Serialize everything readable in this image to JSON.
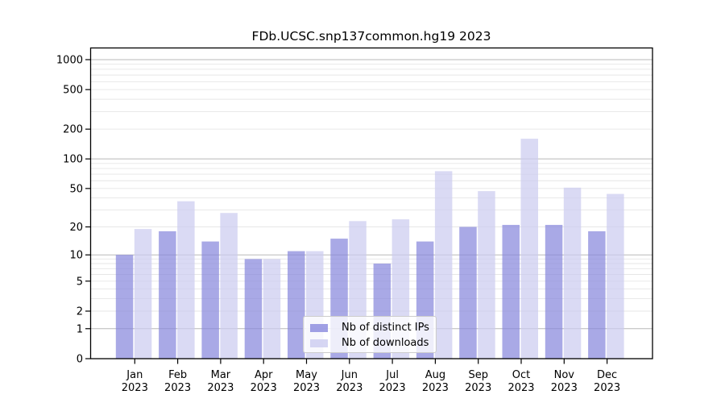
{
  "figure": {
    "background": "#ffffff",
    "spine_color": "#000000",
    "grid_minor_color": "#e6e6e6",
    "grid_decade_color": "#b8b8b8",
    "tick_label_color": "#000000"
  },
  "chart_data": {
    "type": "bar",
    "title": "FDb.UCSC.snp137common.hg19 2023",
    "months": [
      "Jan",
      "Feb",
      "Mar",
      "Apr",
      "May",
      "Jun",
      "Jul",
      "Aug",
      "Sep",
      "Oct",
      "Nov",
      "Dec"
    ],
    "year": "2023",
    "series": [
      {
        "name": "Nb of distinct IPs",
        "color": "#8888dd",
        "values": [
          10,
          18,
          14,
          9,
          11,
          15,
          8,
          14,
          20,
          21,
          21,
          18
        ]
      },
      {
        "name": "Nb of downloads",
        "color": "#ccccf0",
        "values": [
          19,
          37,
          28,
          9,
          11,
          23,
          24,
          75,
          47,
          160,
          51,
          44
        ]
      }
    ],
    "y_scale": "log1p",
    "ylim": [
      0,
      1300
    ],
    "y_ticks": [
      0,
      1,
      2,
      5,
      10,
      20,
      50,
      100,
      200,
      500,
      1000
    ],
    "grid_decades": [
      1,
      10,
      100,
      1000
    ],
    "grid_minor": [
      2,
      3,
      4,
      5,
      6,
      7,
      8,
      9,
      20,
      30,
      40,
      50,
      60,
      70,
      80,
      90,
      200,
      300,
      400,
      500,
      600,
      700,
      800,
      900
    ],
    "legend_position": "lower center",
    "grid": "horizontal"
  }
}
